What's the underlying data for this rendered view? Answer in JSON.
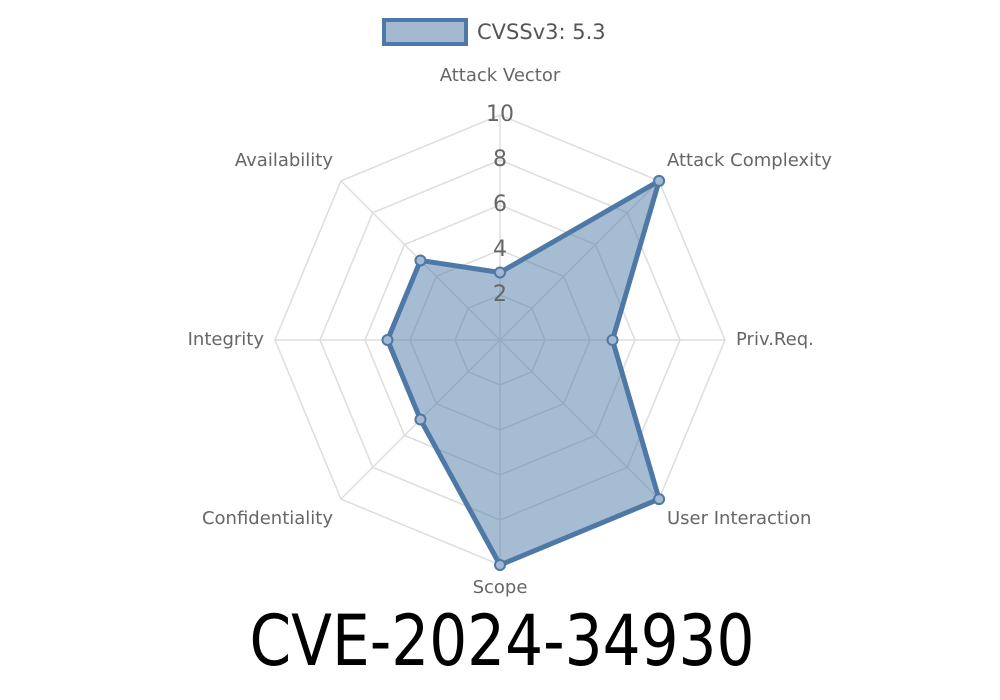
{
  "chart_data": {
    "type": "radar",
    "title": "CVE-2024-34930",
    "categories": [
      "Attack Vector",
      "Attack Complexity",
      "Priv.Req.",
      "User Interaction",
      "Scope",
      "Confidentiality",
      "Integrity",
      "Availability"
    ],
    "series": [
      {
        "name": "CVSSv3: 5.3",
        "color": "#4e79a7",
        "values": [
          3,
          10,
          5,
          10,
          10,
          5,
          5,
          5
        ]
      }
    ],
    "rlim": [
      0,
      10
    ],
    "rticks": [
      2,
      4,
      6,
      8,
      10
    ],
    "grid": true,
    "legend": "top"
  }
}
